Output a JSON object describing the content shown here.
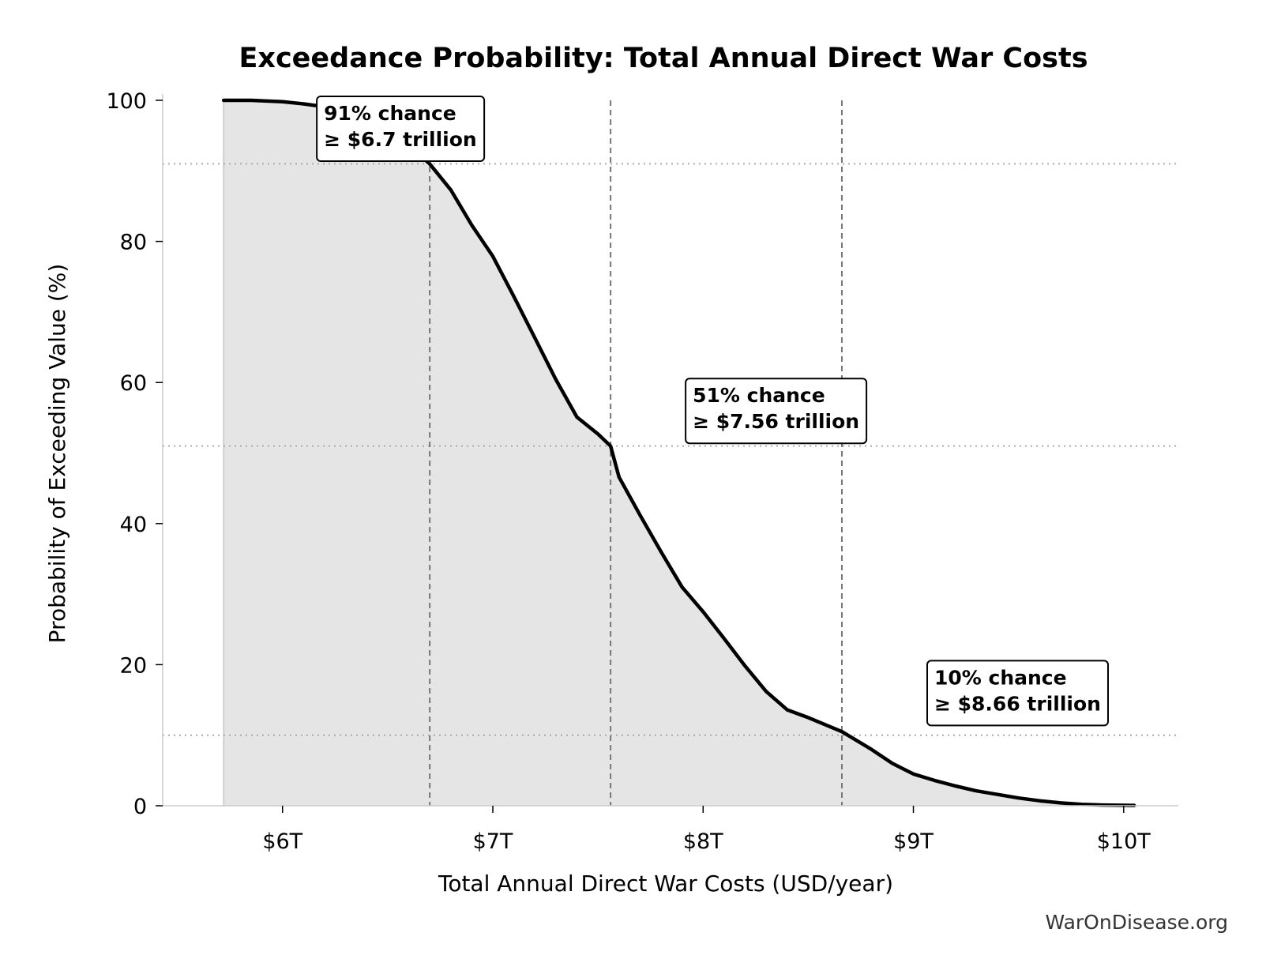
{
  "chart_data": {
    "type": "area",
    "title": "Exceedance Probability: Total Annual Direct War Costs",
    "xlabel": "Total Annual Direct War Costs (USD/year)",
    "ylabel": "Probability of Exceeding Value (%)",
    "xlim": [
      5.43,
      10.26
    ],
    "ylim": [
      0,
      100
    ],
    "x_unit": "trillion USD/year",
    "y_unit": "%",
    "x_ticks": [
      {
        "value": 6,
        "label": "$6T"
      },
      {
        "value": 7,
        "label": "$7T"
      },
      {
        "value": 8,
        "label": "$8T"
      },
      {
        "value": 9,
        "label": "$9T"
      },
      {
        "value": 10,
        "label": "$10T"
      }
    ],
    "y_ticks": [
      {
        "value": 0,
        "label": "0"
      },
      {
        "value": 20,
        "label": "20"
      },
      {
        "value": 40,
        "label": "40"
      },
      {
        "value": 60,
        "label": "60"
      },
      {
        "value": 80,
        "label": "80"
      },
      {
        "value": 100,
        "label": "100"
      }
    ],
    "grid": false,
    "series": [
      {
        "x": [
          5.72,
          5.85,
          6.0,
          6.1,
          6.22,
          6.3,
          6.4,
          6.5,
          6.6,
          6.7,
          6.8,
          6.9,
          7.0,
          7.1,
          7.2,
          7.3,
          7.4,
          7.5,
          7.56,
          7.6,
          7.7,
          7.8,
          7.9,
          8.0,
          8.1,
          8.2,
          8.3,
          8.4,
          8.5,
          8.66,
          8.8,
          8.9,
          9.0,
          9.1,
          9.2,
          9.3,
          9.4,
          9.5,
          9.6,
          9.7,
          9.8,
          9.9,
          10.05
        ],
        "y": [
          100,
          100,
          99.8,
          99.5,
          99.0,
          98.2,
          97.2,
          95.7,
          93.6,
          91.0,
          87.3,
          82.3,
          77.9,
          72.2,
          66.3,
          60.4,
          55.1,
          52.7,
          51.0,
          46.6,
          41.2,
          36.0,
          31.0,
          27.5,
          23.7,
          19.8,
          16.2,
          13.6,
          12.5,
          10.5,
          8.0,
          6.0,
          4.5,
          3.6,
          2.8,
          2.1,
          1.6,
          1.1,
          0.7,
          0.4,
          0.2,
          0.1,
          0.05
        ]
      }
    ],
    "annotations": [
      {
        "x": 6.7,
        "y": 91,
        "line1": "91% chance",
        "line2": "≥ $6.7 trillion"
      },
      {
        "x": 7.56,
        "y": 51,
        "line1": "51% chance",
        "line2": "≥ $7.56 trillion"
      },
      {
        "x": 8.66,
        "y": 10,
        "line1": "10% chance",
        "line2": "≥ $8.66 trillion"
      }
    ],
    "colors": {
      "line": "#000000",
      "fill": "#e5e5e5",
      "reference": "#777777",
      "guide": "#aaaaaa"
    }
  },
  "credit": "WarOnDisease.org"
}
